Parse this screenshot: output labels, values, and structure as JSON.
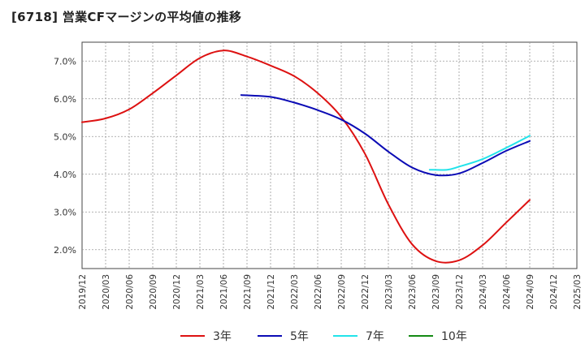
{
  "title": "[6718]  営業CFマージンの平均値の推移",
  "chart_data": {
    "type": "line",
    "title": "[6718]  営業CFマージンの平均値の推移",
    "xlabel": "",
    "ylabel": "",
    "x_tick_labels": [
      "2019/12",
      "2020/03",
      "2020/06",
      "2020/09",
      "2020/12",
      "2021/03",
      "2021/06",
      "2021/09",
      "2021/12",
      "2022/03",
      "2022/06",
      "2022/09",
      "2022/12",
      "2023/03",
      "2023/06",
      "2023/09",
      "2023/12",
      "2024/03",
      "2024/06",
      "2024/09",
      "2024/12",
      "2025/03"
    ],
    "y_tick_labels": [
      "2.0%",
      "3.0%",
      "4.0%",
      "5.0%",
      "6.0%",
      "7.0%"
    ],
    "y_ticks": [
      2.0,
      3.0,
      4.0,
      5.0,
      6.0,
      7.0
    ],
    "ylim": [
      1.5,
      7.5
    ],
    "grid": true,
    "legend_position": "bottom",
    "series": [
      {
        "name": "3年",
        "color": "#dd1111",
        "points": [
          [
            0,
            5.38
          ],
          [
            1,
            5.48
          ],
          [
            2,
            5.72
          ],
          [
            3,
            6.15
          ],
          [
            4,
            6.62
          ],
          [
            5,
            7.08
          ],
          [
            6,
            7.28
          ],
          [
            7,
            7.12
          ],
          [
            8,
            6.88
          ],
          [
            9,
            6.6
          ],
          [
            10,
            6.15
          ],
          [
            11,
            5.52
          ],
          [
            12,
            4.55
          ],
          [
            13,
            3.2
          ],
          [
            14,
            2.15
          ],
          [
            15,
            1.7
          ],
          [
            16,
            1.72
          ],
          [
            17,
            2.12
          ],
          [
            18,
            2.72
          ],
          [
            19,
            3.32
          ]
        ]
      },
      {
        "name": "5年",
        "color": "#0b0bb5",
        "points": [
          [
            6.75,
            6.1
          ],
          [
            8,
            6.05
          ],
          [
            9,
            5.9
          ],
          [
            10,
            5.7
          ],
          [
            11,
            5.45
          ],
          [
            12,
            5.08
          ],
          [
            13,
            4.6
          ],
          [
            14,
            4.18
          ],
          [
            15,
            3.98
          ],
          [
            16,
            4.02
          ],
          [
            17,
            4.3
          ],
          [
            18,
            4.62
          ],
          [
            19,
            4.88
          ]
        ]
      },
      {
        "name": "7年",
        "color": "#22e3ea",
        "points": [
          [
            14.75,
            4.12
          ],
          [
            15.5,
            4.12
          ],
          [
            16,
            4.2
          ],
          [
            17,
            4.4
          ],
          [
            18,
            4.7
          ],
          [
            19,
            5.02
          ]
        ]
      },
      {
        "name": "10年",
        "color": "#138a13",
        "points": []
      }
    ]
  }
}
